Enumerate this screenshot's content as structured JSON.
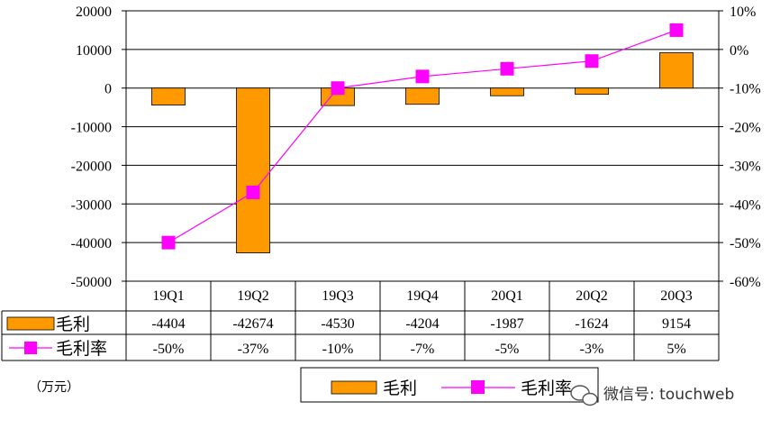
{
  "chart_data": {
    "type": "bar+line",
    "categories": [
      "19Q1",
      "19Q2",
      "19Q3",
      "19Q4",
      "20Q1",
      "20Q2",
      "20Q3"
    ],
    "series": [
      {
        "name": "毛利",
        "kind": "bar",
        "axis": "left",
        "color": "#FF9900",
        "values": [
          -4404,
          -42674,
          -4530,
          -4204,
          -1987,
          -1624,
          9154
        ],
        "labels": [
          "-4404",
          "-42674",
          "-4530",
          "-4204",
          "-1987",
          "-1624",
          "9154"
        ]
      },
      {
        "name": "毛利率",
        "kind": "line",
        "axis": "right",
        "color": "#FF00FF",
        "values": [
          -50,
          -37,
          -10,
          -7,
          -5,
          -3,
          5
        ],
        "labels": [
          "-50%",
          "-37%",
          "-10%",
          "-7%",
          "-5%",
          "-3%",
          "5%"
        ]
      }
    ],
    "y_left": {
      "ylim": [
        -50000,
        20000
      ],
      "ticks": [
        20000,
        10000,
        0,
        -10000,
        -20000,
        -30000,
        -40000,
        -50000
      ],
      "tick_labels": [
        "20000",
        "10000",
        "0",
        "-10000",
        "-20000",
        "-30000",
        "-40000",
        "-50000"
      ]
    },
    "y_right": {
      "ylim": [
        -60,
        10
      ],
      "ticks": [
        10,
        0,
        -10,
        -20,
        -30,
        -40,
        -50,
        -60
      ],
      "tick_labels": [
        "10%",
        "0%",
        "-10%",
        "-20%",
        "-30%",
        "-40%",
        "-50%",
        "-60%"
      ]
    },
    "grid": true,
    "legend_position": "bottom-center",
    "unit_label": "（万元）"
  },
  "watermark": "微信号: touchweb"
}
